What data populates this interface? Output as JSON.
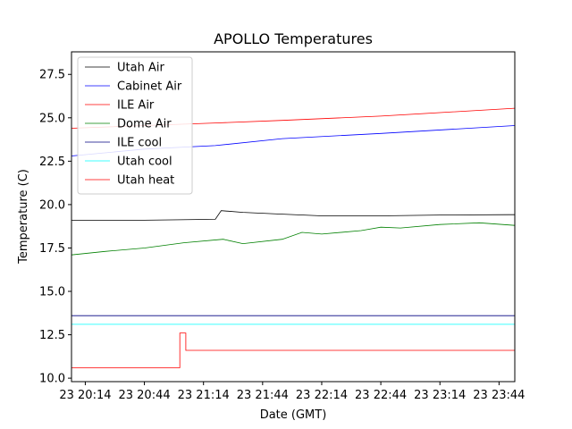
{
  "chart_data": {
    "type": "line",
    "title": "APOLLO Temperatures",
    "xlabel": "Date (GMT)",
    "ylabel": "Temperature (C)",
    "xlim_minutes": [
      0,
      225
    ],
    "ylim": [
      9.8,
      28.8
    ],
    "y_ticks": [
      10.0,
      12.5,
      15.0,
      17.5,
      20.0,
      22.5,
      25.0,
      27.5
    ],
    "y_tick_labels": [
      "10.0",
      "12.5",
      "15.0",
      "17.5",
      "20.0",
      "22.5",
      "25.0",
      "27.5"
    ],
    "x_ticks_minutes": [
      0,
      30,
      60,
      90,
      120,
      150,
      180,
      210
    ],
    "x_tick_labels": [
      "23 20:14",
      "23 20:44",
      "23 21:14",
      "23 21:44",
      "23 22:14",
      "23 22:44",
      "23 23:14",
      "23 23:44"
    ],
    "x_offset_minutes": 7,
    "legend_position": "upper-left",
    "series": [
      {
        "name": "Utah Air",
        "color": "#000000",
        "x": [
          -7,
          30,
          66,
          69,
          80,
          100,
          120,
          150,
          180,
          215,
          218
        ],
        "y": [
          19.1,
          19.1,
          19.15,
          19.65,
          19.55,
          19.45,
          19.35,
          19.35,
          19.4,
          19.42,
          19.42
        ]
      },
      {
        "name": "Cabinet Air",
        "color": "#0000ff",
        "x": [
          -7,
          30,
          66,
          100,
          150,
          218
        ],
        "y": [
          22.8,
          23.2,
          23.4,
          23.8,
          24.1,
          24.55
        ]
      },
      {
        "name": "ILE Air",
        "color": "#ff0000",
        "x": [
          -7,
          30,
          66,
          100,
          150,
          218
        ],
        "y": [
          24.4,
          24.55,
          24.7,
          24.85,
          25.1,
          25.55
        ]
      },
      {
        "name": "Dome Air",
        "color": "#008000",
        "x": [
          -7,
          10,
          30,
          50,
          70,
          80,
          100,
          110,
          120,
          140,
          150,
          160,
          180,
          200,
          218
        ],
        "y": [
          17.1,
          17.3,
          17.5,
          17.8,
          18.0,
          17.75,
          18.0,
          18.4,
          18.3,
          18.5,
          18.7,
          18.65,
          18.85,
          18.95,
          18.8
        ]
      },
      {
        "name": "ILE cool",
        "color": "#000080",
        "x": [
          -7,
          218
        ],
        "y": [
          13.6,
          13.6
        ]
      },
      {
        "name": "Utah cool",
        "color": "#00ffff",
        "x": [
          -7,
          218
        ],
        "y": [
          13.1,
          13.1
        ]
      },
      {
        "name": "Utah heat",
        "color": "#ff0000",
        "x": [
          -7,
          48,
          48,
          51,
          51,
          218
        ],
        "y": [
          10.6,
          10.6,
          12.6,
          12.6,
          11.6,
          11.6
        ]
      }
    ]
  }
}
